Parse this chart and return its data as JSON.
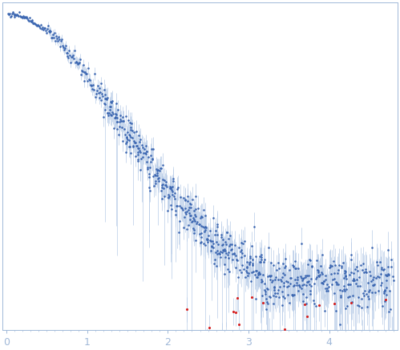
{
  "xlim": [
    -0.05,
    4.85
  ],
  "ylim": [
    -0.08,
    0.75
  ],
  "xticks": [
    0,
    1,
    2,
    3,
    4
  ],
  "tick_color": "#a0b8d8",
  "axis_color": "#a0b8d8",
  "dot_color_blue": "#3a65b0",
  "dot_color_red": "#d42020",
  "errorbar_color": "#b8cce8",
  "bg_color": "#ffffff",
  "dot_size_blue": 3.5,
  "dot_size_red": 5,
  "figsize": [
    4.99,
    4.37
  ],
  "dpi": 100
}
